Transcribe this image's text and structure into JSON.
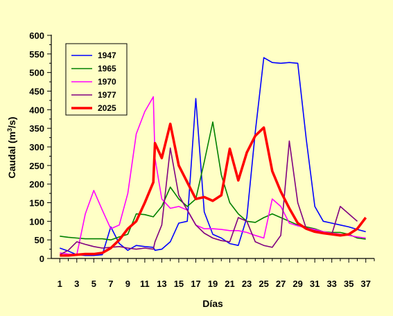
{
  "chart_data": {
    "type": "line",
    "title": "",
    "xlabel": "Días",
    "ylabel_main": "Caudal (m",
    "ylabel_sup": "3",
    "ylabel_end": "/s)",
    "ylim": [
      0,
      600
    ],
    "xlim": [
      0,
      38
    ],
    "yticks": [
      0,
      50,
      100,
      150,
      200,
      250,
      300,
      350,
      400,
      450,
      500,
      550,
      600
    ],
    "xticks": [
      1,
      3,
      5,
      7,
      9,
      11,
      13,
      15,
      17,
      19,
      21,
      23,
      25,
      27,
      29,
      31,
      33,
      35,
      37
    ],
    "grid": false,
    "legend_position": "top-left",
    "series": [
      {
        "name": "1947",
        "color": "#0000ff",
        "width": 1.6,
        "x": [
          1,
          2,
          3,
          4,
          5,
          6,
          7,
          8,
          9,
          10,
          11,
          12,
          12.2,
          13,
          14,
          15,
          16,
          17,
          18,
          19,
          20,
          21,
          22,
          23,
          24,
          25,
          26,
          27,
          28,
          29,
          30,
          31,
          32,
          33,
          34,
          35,
          36,
          37
        ],
        "y": [
          28,
          20,
          10,
          8,
          8,
          10,
          85,
          40,
          22,
          35,
          32,
          30,
          22,
          25,
          45,
          95,
          100,
          430,
          125,
          65,
          55,
          40,
          35,
          110,
          340,
          540,
          527,
          525,
          527,
          525,
          320,
          140,
          100,
          95,
          90,
          85,
          78,
          72
        ]
      },
      {
        "name": "1965",
        "color": "#008000",
        "width": 1.6,
        "x": [
          1,
          2,
          3,
          4,
          5,
          6,
          7,
          8,
          9,
          10,
          11,
          12,
          13,
          14,
          15,
          16,
          17,
          18,
          19,
          20,
          21,
          22,
          23,
          24,
          25,
          26,
          27,
          28,
          29,
          30,
          31,
          32,
          33,
          34,
          35,
          36,
          37
        ],
        "y": [
          60,
          57,
          55,
          53,
          53,
          53,
          50,
          58,
          65,
          120,
          118,
          112,
          140,
          192,
          160,
          140,
          160,
          260,
          367,
          225,
          150,
          120,
          100,
          97,
          110,
          120,
          110,
          100,
          90,
          85,
          80,
          72,
          70,
          70,
          65,
          55,
          52
        ]
      },
      {
        "name": "1970",
        "color": "#ff00ff",
        "width": 1.6,
        "x": [
          1,
          2,
          3,
          4,
          5,
          6,
          7,
          8,
          9,
          10,
          11,
          12,
          12.2,
          13,
          14,
          15,
          16,
          17,
          18,
          19,
          20,
          21,
          22,
          23,
          24,
          25,
          26,
          27,
          28,
          29,
          30,
          31,
          32,
          33,
          34,
          35,
          36,
          37
        ],
        "y": [
          15,
          12,
          10,
          120,
          183,
          130,
          80,
          90,
          175,
          335,
          395,
          435,
          270,
          160,
          135,
          140,
          130,
          90,
          80,
          80,
          78,
          75,
          75,
          70,
          62,
          55,
          160,
          140,
          95,
          88,
          82,
          78,
          72,
          68,
          65,
          62,
          58,
          55
        ]
      },
      {
        "name": "1977",
        "color": "#800080",
        "width": 1.6,
        "x": [
          1,
          2,
          3,
          4,
          5,
          6,
          7,
          8,
          9,
          10,
          11,
          12,
          12.2,
          13,
          14,
          15,
          16,
          17,
          18,
          19,
          20,
          21,
          22,
          23,
          24,
          25,
          26,
          27,
          28,
          29,
          30,
          31,
          32,
          33,
          34,
          35,
          36
        ],
        "y": [
          10,
          22,
          45,
          38,
          32,
          28,
          30,
          32,
          28,
          25,
          28,
          25,
          45,
          90,
          297,
          170,
          130,
          90,
          68,
          55,
          48,
          45,
          110,
          100,
          45,
          35,
          30,
          62,
          316,
          150,
          80,
          75,
          70,
          65,
          140,
          120,
          100
        ]
      },
      {
        "name": "2025",
        "color": "#ff0000",
        "width": 3.6,
        "x": [
          1,
          2,
          3,
          4,
          5,
          6,
          7,
          8,
          9,
          10,
          11,
          12,
          12.2,
          13,
          14,
          15,
          16,
          17,
          18,
          19,
          20,
          21,
          22,
          23,
          24,
          25,
          26,
          27,
          28,
          29,
          30,
          31,
          32,
          33,
          34,
          35,
          36,
          37
        ],
        "y": [
          8,
          8,
          10,
          12,
          12,
          15,
          28,
          50,
          80,
          100,
          150,
          205,
          310,
          270,
          362,
          250,
          205,
          160,
          165,
          155,
          170,
          295,
          210,
          285,
          330,
          352,
          235,
          180,
          135,
          95,
          80,
          72,
          68,
          65,
          62,
          65,
          80,
          110
        ]
      }
    ]
  }
}
